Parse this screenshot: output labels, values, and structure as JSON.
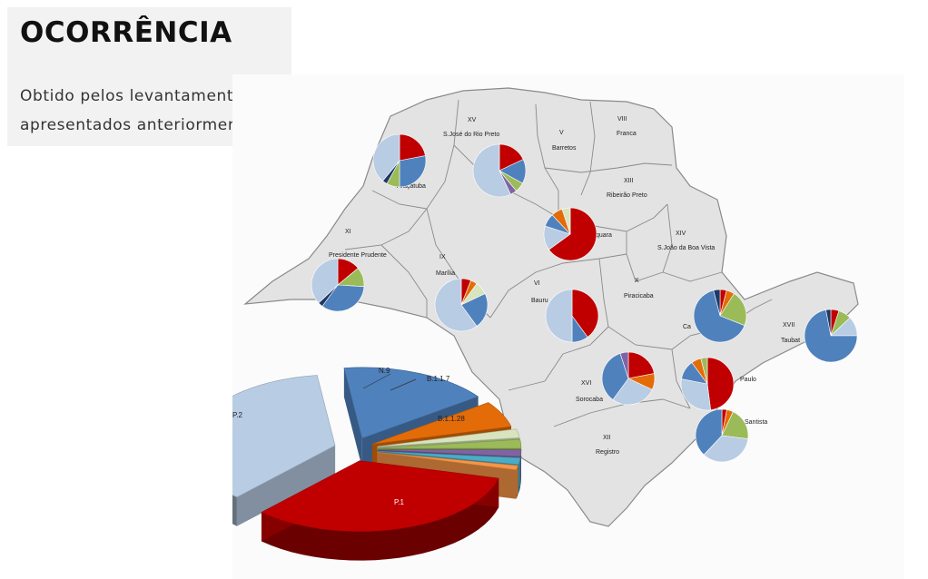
{
  "title": "OCORRÊNCIA",
  "subtitle_lines": [
    "Obtido pelos levantamentos",
    "apresentados anteriormente."
  ],
  "region_labels": [
    {
      "num": "XV",
      "name": "S.José do Rio Preto"
    },
    {
      "num": "V",
      "name": "Barretos"
    },
    {
      "num": "VIII",
      "name": "Franca"
    },
    {
      "num": "",
      "name": "Araçatuba"
    },
    {
      "num": "XIII",
      "name": "Ribeirão Preto"
    },
    {
      "num": "",
      "name": "quara"
    },
    {
      "num": "XI",
      "name": "Presidente Prudente"
    },
    {
      "num": "IX",
      "name": "Marília"
    },
    {
      "num": "VI",
      "name": "Bauru"
    },
    {
      "num": "X",
      "name": "Piracicaba"
    },
    {
      "num": "XIV",
      "name": "S.João da Boa Vista"
    },
    {
      "num": "",
      "name": "Ca"
    },
    {
      "num": "XVII",
      "name": "Taubat"
    },
    {
      "num": "XVI",
      "name": "Sorocaba"
    },
    {
      "num": "",
      "name": "Paulo"
    },
    {
      "num": "",
      "name": "Santista"
    },
    {
      "num": "XII",
      "name": "Registro"
    }
  ],
  "legend_pie": {
    "labels": [
      "N.9",
      "B.1.1.7",
      "B.1.1.28",
      "P.2",
      "P.1"
    ]
  },
  "chart_data": {
    "type": "pie",
    "series": [
      {
        "name": "P.1",
        "value": 33,
        "color": "#c00000"
      },
      {
        "name": "P.2",
        "value": 36,
        "color": "#b8cce4"
      },
      {
        "name": "B.1.1.28",
        "value": 17,
        "color": "#4f81bd"
      },
      {
        "name": "B.1.1.7",
        "value": 6,
        "color": "#e36c09"
      },
      {
        "name": "N.9",
        "value": 2,
        "color": "#d7e4bd"
      },
      {
        "name": "",
        "value": 2,
        "color": "#9bbb59"
      },
      {
        "name": "",
        "value": 1.5,
        "color": "#8064a2"
      },
      {
        "name": "",
        "value": 1.5,
        "color": "#4bacc6"
      },
      {
        "name": "",
        "value": 1,
        "color": "#f79646"
      }
    ]
  },
  "region_pies": [
    {
      "region": "Araçatuba",
      "slices": [
        {
          "c": "#c00000",
          "v": 22
        },
        {
          "c": "#4f81bd",
          "v": 28
        },
        {
          "c": "#9bbb59",
          "v": 8
        },
        {
          "c": "#1f3864",
          "v": 3
        },
        {
          "c": "#b8cce4",
          "v": 39
        }
      ]
    },
    {
      "region": "S.José do Rio Preto",
      "slices": [
        {
          "c": "#c00000",
          "v": 18
        },
        {
          "c": "#4f81bd",
          "v": 15
        },
        {
          "c": "#9bbb59",
          "v": 6
        },
        {
          "c": "#8064a2",
          "v": 4
        },
        {
          "c": "#b8cce4",
          "v": 57
        }
      ]
    },
    {
      "region": "Araraquara",
      "slices": [
        {
          "c": "#c00000",
          "v": 65
        },
        {
          "c": "#b8cce4",
          "v": 15
        },
        {
          "c": "#4f81bd",
          "v": 8
        },
        {
          "c": "#e36c09",
          "v": 7
        },
        {
          "c": "#d7e4bd",
          "v": 5
        }
      ]
    },
    {
      "region": "Presidente Prudente",
      "slices": [
        {
          "c": "#c00000",
          "v": 14
        },
        {
          "c": "#9bbb59",
          "v": 12
        },
        {
          "c": "#4f81bd",
          "v": 34
        },
        {
          "c": "#1f3864",
          "v": 3
        },
        {
          "c": "#b8cce4",
          "v": 37
        }
      ]
    },
    {
      "region": "Marília",
      "slices": [
        {
          "c": "#c00000",
          "v": 6
        },
        {
          "c": "#e36c09",
          "v": 4
        },
        {
          "c": "#d7e4bd",
          "v": 8
        },
        {
          "c": "#4f81bd",
          "v": 22
        },
        {
          "c": "#b8cce4",
          "v": 60
        }
      ]
    },
    {
      "region": "Bauru",
      "slices": [
        {
          "c": "#c00000",
          "v": 40
        },
        {
          "c": "#4f81bd",
          "v": 10
        },
        {
          "c": "#b8cce4",
          "v": 50
        }
      ]
    },
    {
      "region": "Campinas",
      "slices": [
        {
          "c": "#c00000",
          "v": 4
        },
        {
          "c": "#e36c09",
          "v": 5
        },
        {
          "c": "#9bbb59",
          "v": 22
        },
        {
          "c": "#4f81bd",
          "v": 65
        },
        {
          "c": "#1f3864",
          "v": 4
        }
      ]
    },
    {
      "region": "Taubaté",
      "slices": [
        {
          "c": "#c00000",
          "v": 5
        },
        {
          "c": "#9bbb59",
          "v": 8
        },
        {
          "c": "#b8cce4",
          "v": 12
        },
        {
          "c": "#4f81bd",
          "v": 72
        },
        {
          "c": "#1f3864",
          "v": 3
        }
      ]
    },
    {
      "region": "Sorocaba",
      "slices": [
        {
          "c": "#c00000",
          "v": 22
        },
        {
          "c": "#e36c09",
          "v": 10
        },
        {
          "c": "#b8cce4",
          "v": 28
        },
        {
          "c": "#4f81bd",
          "v": 35
        },
        {
          "c": "#8064a2",
          "v": 5
        }
      ]
    },
    {
      "region": "São Paulo",
      "slices": [
        {
          "c": "#c00000",
          "v": 48
        },
        {
          "c": "#b8cce4",
          "v": 30
        },
        {
          "c": "#4f81bd",
          "v": 12
        },
        {
          "c": "#e36c09",
          "v": 6
        },
        {
          "c": "#9bbb59",
          "v": 4
        }
      ]
    },
    {
      "region": "Baixada Santista",
      "slices": [
        {
          "c": "#c00000",
          "v": 3
        },
        {
          "c": "#e36c09",
          "v": 4
        },
        {
          "c": "#9bbb59",
          "v": 20
        },
        {
          "c": "#b8cce4",
          "v": 35
        },
        {
          "c": "#4f81bd",
          "v": 38
        }
      ]
    }
  ]
}
